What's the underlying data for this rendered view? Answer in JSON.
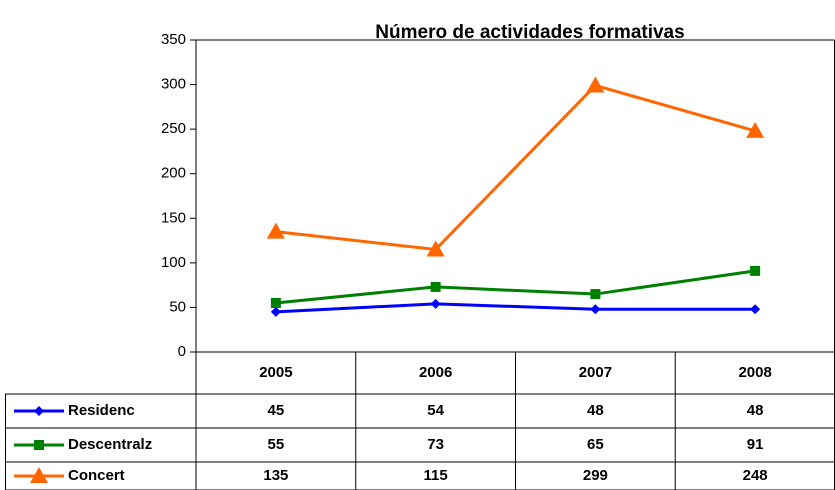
{
  "chart_data": {
    "type": "line",
    "title": "Número de actividades formativas",
    "categories": [
      "2005",
      "2006",
      "2007",
      "2008"
    ],
    "series": [
      {
        "name": "Residenc",
        "color": "#0000ff",
        "marker": "diamond",
        "values": [
          45,
          54,
          48,
          48
        ]
      },
      {
        "name": "Descentralz",
        "color": "#008000",
        "marker": "square",
        "values": [
          55,
          73,
          65,
          91
        ]
      },
      {
        "name": "Concert",
        "color": "#ff6600",
        "marker": "triangle",
        "values": [
          135,
          115,
          299,
          248
        ]
      }
    ],
    "ylim": [
      0,
      350
    ],
    "yticks": [
      0,
      50,
      100,
      150,
      200,
      250,
      300,
      350
    ],
    "grid": false,
    "data_table": true
  }
}
